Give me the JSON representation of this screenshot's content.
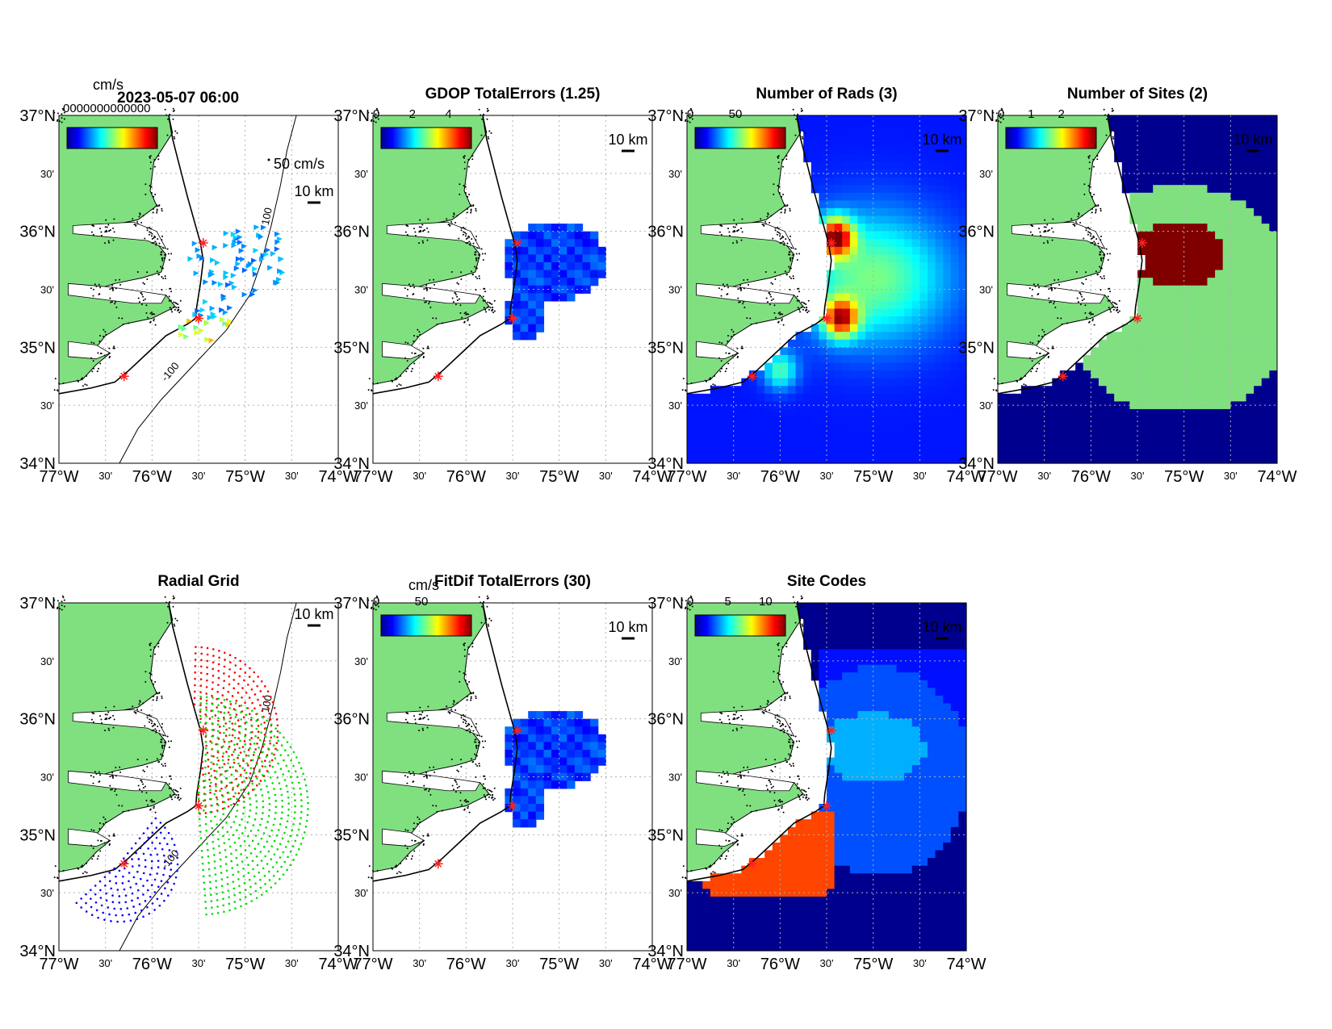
{
  "figure": {
    "timestamp": "2023-05-07 06:00",
    "overlap_text": "0000000000000",
    "speed_unit": "cm/s",
    "vector_scale_label": "50 cm/s",
    "distance_scale_label": "10 km",
    "isobath_label": "100",
    "isobath_label_neg": "-100"
  },
  "axes_ticks": {
    "lat_major": [
      "37°N",
      "36°N",
      "35°N",
      "34°N"
    ],
    "lat_minor": "30'",
    "lon_major": [
      "77°W",
      "76°W",
      "75°W",
      "74°W"
    ],
    "lon_minor": "30'"
  },
  "colors": {
    "land": "#80e080",
    "ocean_dark": "#00008f",
    "site_marker": "#ff2020",
    "grid_site_red": "#ff0000",
    "grid_site_green": "#00dd00",
    "grid_site_blue": "#0000ff"
  },
  "chart_data": [
    {
      "type": "heatmap",
      "title": "",
      "subtitle": "2023-05-07 06:00",
      "description_kind": "current vectors",
      "colorbar_unit": "cm/s",
      "colorbar_range": [
        0,
        50
      ],
      "xlim": [
        -77,
        -74
      ],
      "ylim": [
        34,
        37
      ],
      "sites": [
        [
          -75.45,
          35.9
        ],
        [
          -75.5,
          35.25
        ],
        [
          -76.3,
          34.75
        ]
      ],
      "vector_region_lon": [
        -75.7,
        -74.6
      ],
      "vector_region_lat": [
        35.05,
        36.05
      ]
    },
    {
      "type": "heatmap",
      "title": "GDOP TotalErrors (1.25)",
      "colorbar_range": [
        0,
        5
      ],
      "colorbar_ticks": [
        "0",
        "2",
        "4"
      ],
      "xlim": [
        -77,
        -74
      ],
      "ylim": [
        34,
        37
      ]
    },
    {
      "type": "heatmap",
      "title": "Number of Rads (3)",
      "colorbar_range": [
        0,
        100
      ],
      "colorbar_ticks": [
        "0",
        "50"
      ],
      "xlim": [
        -77,
        -74
      ],
      "ylim": [
        34,
        37
      ],
      "hotspots": [
        [
          -75.4,
          35.95,
          100
        ],
        [
          -75.35,
          35.25,
          90
        ],
        [
          -76.0,
          34.8,
          40
        ]
      ]
    },
    {
      "type": "heatmap",
      "title": "Number of Sites (2)",
      "colorbar_range": [
        0,
        3
      ],
      "colorbar_ticks": [
        "0",
        "1",
        "2"
      ],
      "xlim": [
        -77,
        -74
      ],
      "ylim": [
        34,
        37
      ]
    },
    {
      "type": "scatter",
      "title": "Radial Grid",
      "xlim": [
        -77,
        -74
      ],
      "ylim": [
        34,
        37
      ],
      "series": [
        {
          "site": [
            -75.55,
            35.9
          ],
          "color": "red"
        },
        {
          "site": [
            -75.5,
            35.25
          ],
          "color": "green"
        },
        {
          "site": [
            -76.35,
            34.75
          ],
          "color": "blue"
        }
      ]
    },
    {
      "type": "heatmap",
      "title": "FitDif TotalErrors (30)",
      "colorbar_unit": "cm/s",
      "colorbar_range": [
        0,
        100
      ],
      "colorbar_ticks": [
        "0",
        "50"
      ],
      "xlim": [
        -77,
        -74
      ],
      "ylim": [
        34,
        37
      ]
    },
    {
      "type": "heatmap",
      "title": "Site Codes",
      "colorbar_range": [
        0,
        12
      ],
      "colorbar_ticks": [
        "0",
        "5",
        "10"
      ],
      "xlim": [
        -77,
        -74
      ],
      "ylim": [
        34,
        37
      ]
    }
  ]
}
